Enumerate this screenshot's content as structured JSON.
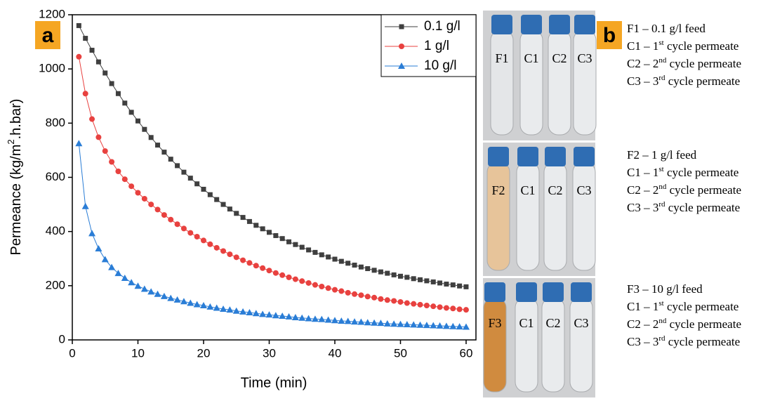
{
  "chart_data": {
    "type": "line",
    "panel_label": "a",
    "x_label": "Time (min)",
    "y_label": {
      "text": "Permeance (kg/m",
      "sup": "2",
      "tail": ".h.bar)"
    },
    "xlim": [
      0,
      61.5
    ],
    "ylim": [
      0,
      1200
    ],
    "xticks": [
      0,
      10,
      20,
      30,
      40,
      50,
      60
    ],
    "yticks": [
      0,
      200,
      400,
      600,
      800,
      1000,
      1200
    ],
    "legend": "upper right",
    "x": [
      1,
      2,
      3,
      4,
      5,
      6,
      7,
      8,
      9,
      10,
      11,
      12,
      13,
      14,
      15,
      16,
      17,
      18,
      19,
      20,
      21,
      22,
      23,
      24,
      25,
      26,
      27,
      28,
      29,
      30,
      31,
      32,
      33,
      34,
      35,
      36,
      37,
      38,
      39,
      40,
      41,
      42,
      43,
      44,
      45,
      46,
      47,
      48,
      49,
      50,
      51,
      52,
      53,
      54,
      55,
      56,
      57,
      58,
      59,
      60
    ],
    "series": [
      {
        "name": "0.1 g/l",
        "color": "#3f3f3f",
        "marker": "square",
        "values": [
          1160,
          1113,
          1069,
          1026,
          985,
          946,
          909,
          874,
          840,
          808,
          777,
          747,
          719,
          693,
          667,
          643,
          619,
          597,
          576,
          556,
          536,
          518,
          500,
          483,
          467,
          452,
          437,
          423,
          410,
          397,
          385,
          374,
          362,
          352,
          342,
          332,
          323,
          314,
          306,
          298,
          290,
          283,
          276,
          269,
          263,
          257,
          251,
          246,
          240,
          235,
          231,
          226,
          222,
          218,
          214,
          210,
          206,
          203,
          199,
          196
        ]
      },
      {
        "name": "1 g/l",
        "color": "#e8413f",
        "marker": "circle",
        "values": [
          1045,
          909,
          815,
          748,
          697,
          657,
          622,
          593,
          567,
          543,
          521,
          500,
          481,
          461,
          444,
          427,
          411,
          395,
          381,
          367,
          353,
          340,
          328,
          316,
          305,
          294,
          284,
          274,
          265,
          256,
          247,
          239,
          231,
          224,
          217,
          210,
          203,
          197,
          191,
          185,
          180,
          174,
          169,
          165,
          160,
          156,
          151,
          147,
          144,
          140,
          136,
          133,
          130,
          127,
          124,
          121,
          118,
          116,
          113,
          111
        ]
      },
      {
        "name": "10 g/l",
        "color": "#2a7dd6",
        "marker": "triangle",
        "values": [
          725,
          493,
          393,
          337,
          297,
          268,
          246,
          228,
          212,
          199,
          188,
          178,
          169,
          161,
          154,
          148,
          142,
          136,
          131,
          127,
          122,
          118,
          114,
          111,
          107,
          104,
          101,
          98,
          95,
          93,
          90,
          88,
          86,
          83,
          81,
          79,
          77,
          76,
          74,
          72,
          70,
          69,
          67,
          66,
          64,
          63,
          62,
          60,
          59,
          58,
          57,
          56,
          55,
          54,
          53,
          52,
          51,
          50,
          49,
          48
        ]
      }
    ]
  },
  "photo_panel": {
    "label": "b",
    "rows": [
      {
        "tubes": [
          "F1",
          "C1",
          "C2",
          "C3"
        ],
        "lines": [
          {
            "text": "F1 – 0.1 g/l feed"
          },
          {
            "text": "C1 – 1",
            "sup": "st",
            "tail": " cycle permeate"
          },
          {
            "text": "C2 – 2",
            "sup": "nd",
            "tail": " cycle permeate"
          },
          {
            "text": "C3 – 3",
            "sup": "rd",
            "tail": " cycle permeate"
          }
        ]
      },
      {
        "tubes": [
          "F2",
          "C1",
          "C2",
          "C3"
        ],
        "lines": [
          {
            "text": "F2 – 1 g/l feed"
          },
          {
            "text": "C1 – 1",
            "sup": "st",
            "tail": " cycle permeate"
          },
          {
            "text": "C2 – 2",
            "sup": "nd",
            "tail": " cycle permeate"
          },
          {
            "text": "C3 – 3",
            "sup": "rd",
            "tail": " cycle permeate"
          }
        ]
      },
      {
        "tubes": [
          "F3",
          "C1",
          "C2",
          "C3"
        ],
        "lines": [
          {
            "text": "F3 – 10 g/l feed"
          },
          {
            "text": "C1 – 1",
            "sup": "st",
            "tail": " cycle permeate"
          },
          {
            "text": "C2 – 2",
            "sup": "nd",
            "tail": " cycle permeate"
          },
          {
            "text": "C3 – 3",
            "sup": "rd",
            "tail": " cycle permeate"
          }
        ]
      }
    ]
  }
}
